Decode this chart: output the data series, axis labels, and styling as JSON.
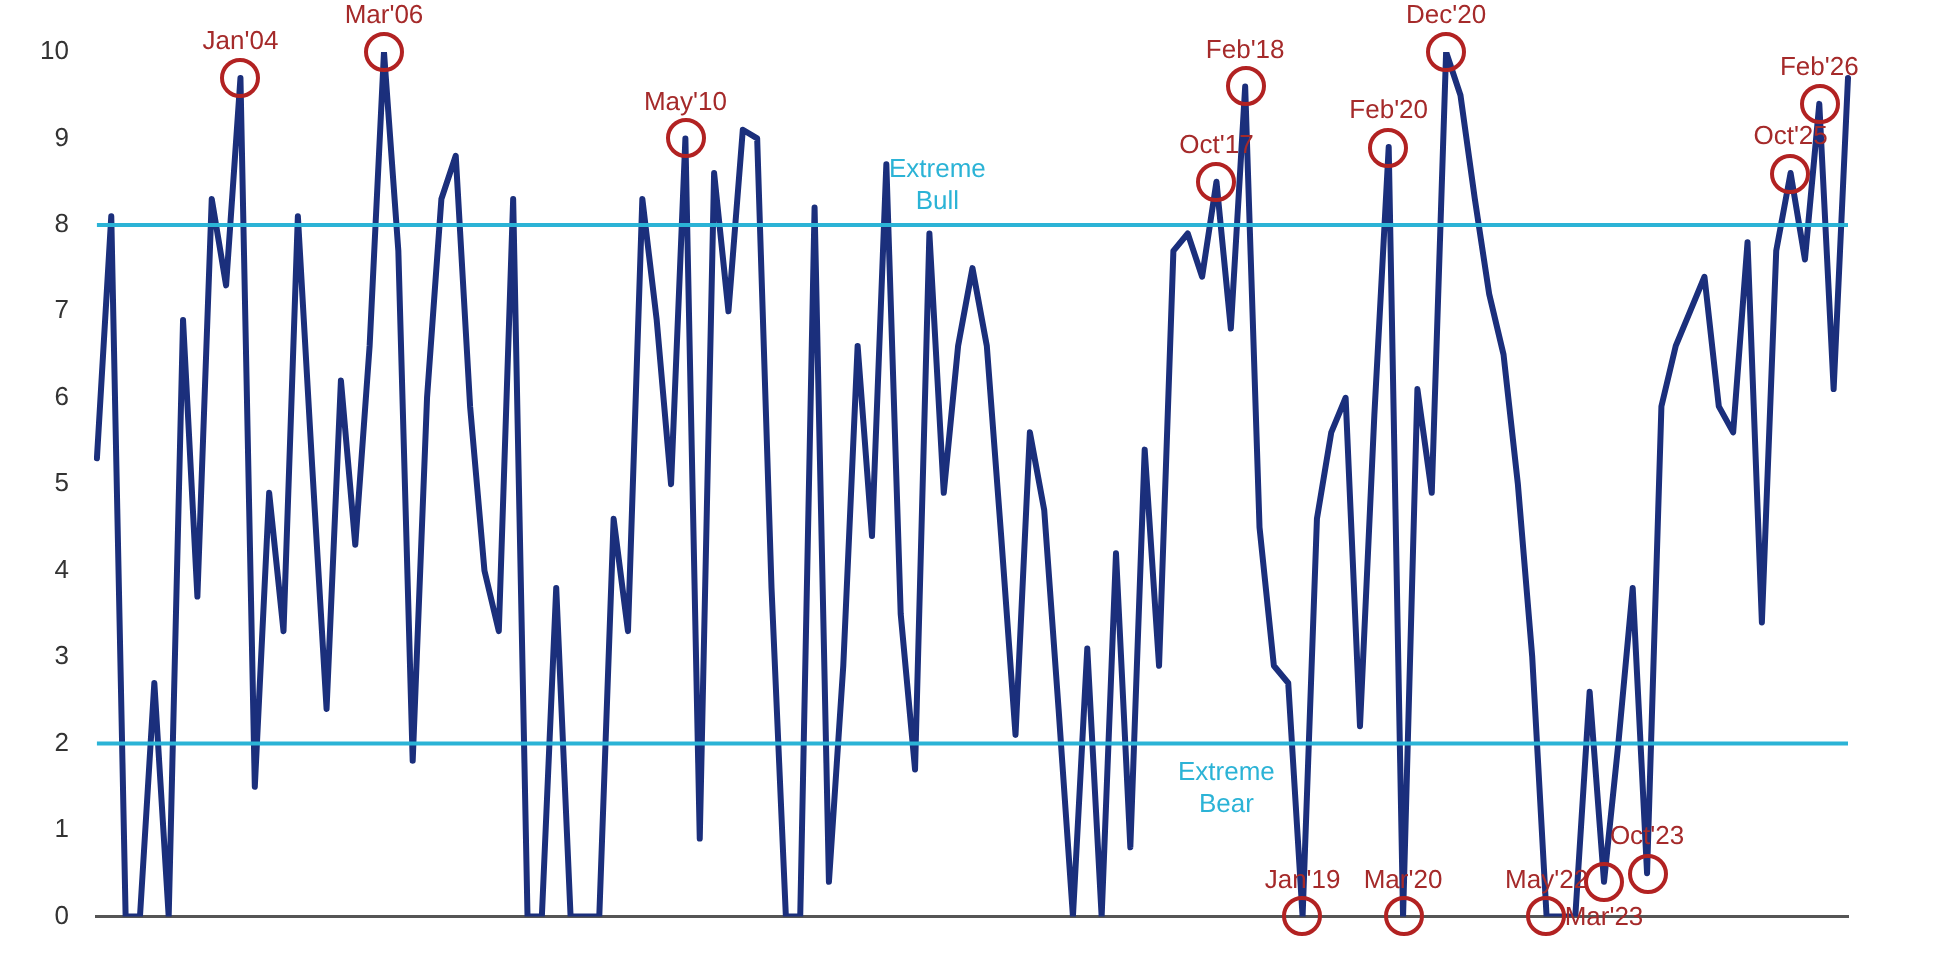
{
  "chart_data": {
    "type": "line",
    "tick_labels": "y",
    "grid": false,
    "legend": false,
    "marker": "none",
    "line_style": "solid",
    "categories": [
      null,
      null,
      null,
      null,
      null,
      null,
      null,
      null,
      null,
      null,
      null,
      null,
      null,
      null,
      null,
      null,
      null,
      null,
      null,
      null,
      null,
      null,
      null,
      null,
      null,
      null,
      null,
      null,
      null,
      null,
      null,
      null,
      null,
      null,
      null,
      null,
      null,
      null,
      null,
      null,
      null,
      null,
      null,
      null,
      null,
      null,
      null,
      null,
      null,
      null,
      null,
      null,
      null,
      null,
      null,
      null,
      null,
      null,
      null,
      null,
      null,
      null,
      null,
      null,
      null,
      null,
      null,
      null,
      null,
      null,
      null,
      null,
      null,
      null,
      null,
      null,
      null,
      null,
      null,
      null,
      null,
      null,
      null,
      null,
      null,
      null,
      null,
      null,
      null,
      null,
      null,
      null,
      null,
      null,
      null,
      null,
      null,
      null,
      null,
      null,
      null,
      null,
      null,
      null,
      null,
      null,
      null,
      null,
      null,
      null,
      null,
      null,
      null,
      null,
      null,
      null,
      null,
      null,
      null,
      null,
      null,
      null,
      null
    ],
    "ylim": [
      0,
      10
    ],
    "yticks": [
      0,
      1,
      2,
      3,
      4,
      5,
      6,
      7,
      8,
      9,
      10
    ],
    "series": [
      {
        "color": "#1b2f7c",
        "values": [
          5.3,
          8.1,
          0,
          0,
          2.7,
          0,
          6.9,
          3.7,
          8.3,
          7.3,
          9.7,
          1.5,
          4.9,
          3.3,
          8.1,
          5.2,
          2.4,
          6.2,
          4.3,
          6.6,
          10,
          7.7,
          1.8,
          6.0,
          8.3,
          8.8,
          5.9,
          4.0,
          3.3,
          8.3,
          0,
          0,
          3.8,
          0,
          0,
          0,
          4.6,
          3.3,
          8.3,
          6.9,
          5.0,
          9.0,
          0.9,
          8.6,
          7.0,
          9.1,
          9.0,
          3.8,
          0,
          0,
          8.2,
          0.4,
          2.9,
          6.6,
          4.4,
          8.7,
          3.5,
          1.7,
          7.9,
          4.9,
          6.6,
          7.5,
          6.6,
          4.4,
          2.1,
          5.6,
          4.7,
          2.4,
          0,
          3.1,
          0,
          4.2,
          0.8,
          5.4,
          2.9,
          7.7,
          7.9,
          7.4,
          8.5,
          6.8,
          9.6,
          4.5,
          2.9,
          2.7,
          0,
          4.6,
          5.6,
          6.0,
          2.2,
          5.8,
          8.9,
          0,
          6.1,
          4.9,
          10,
          9.5,
          8.3,
          7.2,
          6.5,
          5.0,
          3.0,
          0,
          0,
          0,
          2.6,
          0.4,
          2.0,
          3.8,
          0.5,
          5.9,
          6.6,
          7.0,
          7.4,
          5.9,
          5.6,
          7.8,
          3.4,
          7.7,
          8.6,
          7.6,
          9.4,
          6.1,
          9.7
        ]
      }
    ],
    "ref_lines": [
      {
        "axis": "y",
        "value": 8,
        "label": "Extreme Bull",
        "color": "#2bb3d6"
      },
      {
        "axis": "y",
        "value": 2,
        "label": "Extreme Bear",
        "color": "#2bb3d6"
      }
    ],
    "annotations": [
      {
        "text": "Jan'04",
        "y": 9.7
      },
      {
        "text": "Mar'06",
        "y": 10
      },
      {
        "text": "May'10",
        "y": 9.0
      },
      {
        "text": "Oct'17",
        "y": 8.5
      },
      {
        "text": "Feb'18",
        "y": 9.6
      },
      {
        "text": "Jan'19",
        "y": 0
      },
      {
        "text": "Feb'20",
        "y": 8.9
      },
      {
        "text": "Mar'20",
        "y": 0
      },
      {
        "text": "Dec'20",
        "y": 10
      },
      {
        "text": "May'22",
        "y": 0
      },
      {
        "text": "Mar'23",
        "y": 0.4
      },
      {
        "text": "Oct'23",
        "y": 0.5
      },
      {
        "text": "Oct'25",
        "y": 8.6
      },
      {
        "text": "Feb'26",
        "y": 9.4
      }
    ]
  }
}
